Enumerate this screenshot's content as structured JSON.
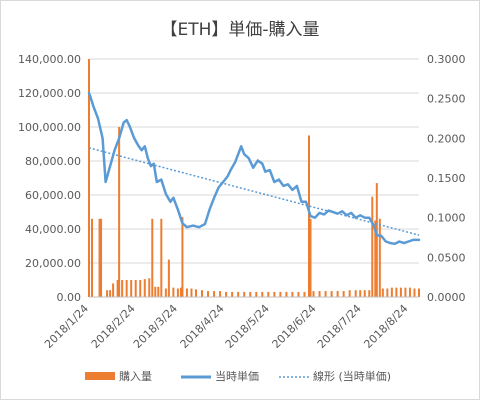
{
  "chart_data": {
    "type": "bar",
    "title": "【ETH】単価-購入量",
    "x_labels": [
      "2018/1/24",
      "2018/2/24",
      "2018/3/24",
      "2018/4/24",
      "2018/5/24",
      "2018/6/24",
      "2018/7/24",
      "2018/8/24"
    ],
    "x_range": [
      "2018/1/24",
      "2018/8/31"
    ],
    "y_left": {
      "range": [
        0,
        140000
      ],
      "ticks": [
        "0.00",
        "20,000.00",
        "40,000.00",
        "60,000.00",
        "80,000.00",
        "100,000.00",
        "120,000.00",
        "140,000.00"
      ]
    },
    "y_right": {
      "range": [
        0,
        0.3
      ],
      "ticks": [
        "0.0000",
        "0.0500",
        "0.1000",
        "0.1500",
        "0.2000",
        "0.2500",
        "0.3000"
      ]
    },
    "grid": true,
    "legend_position": "bottom",
    "series": [
      {
        "name": "購入量",
        "type": "bar",
        "axis": "left",
        "color": "#ed7d31",
        "points": [
          [
            "2018/1/24",
            140000
          ],
          [
            "2018/1/26",
            46000
          ],
          [
            "2018/1/31",
            46000
          ],
          [
            "2018/2/1",
            46000
          ],
          [
            "2018/2/5",
            4000
          ],
          [
            "2018/2/7",
            4000
          ],
          [
            "2018/2/9",
            8000
          ],
          [
            "2018/2/12",
            10000
          ],
          [
            "2018/2/13",
            100000
          ],
          [
            "2018/2/15",
            10000
          ],
          [
            "2018/2/18",
            10000
          ],
          [
            "2018/2/21",
            10000
          ],
          [
            "2018/2/24",
            10000
          ],
          [
            "2018/2/27",
            10000
          ],
          [
            "2018/3/2",
            10500
          ],
          [
            "2018/3/5",
            11000
          ],
          [
            "2018/3/7",
            46000
          ],
          [
            "2018/3/9",
            6000
          ],
          [
            "2018/3/11",
            6000
          ],
          [
            "2018/3/13",
            46000
          ],
          [
            "2018/3/16",
            5000
          ],
          [
            "2018/3/18",
            22000
          ],
          [
            "2018/3/21",
            5500
          ],
          [
            "2018/3/24",
            5000
          ],
          [
            "2018/3/26",
            5500
          ],
          [
            "2018/3/27",
            47000
          ],
          [
            "2018/3/30",
            5000
          ],
          [
            "2018/4/2",
            5000
          ],
          [
            "2018/4/5",
            4500
          ],
          [
            "2018/4/9",
            4000
          ],
          [
            "2018/4/13",
            3500
          ],
          [
            "2018/4/17",
            3500
          ],
          [
            "2018/4/21",
            3500
          ],
          [
            "2018/4/25",
            3000
          ],
          [
            "2018/4/29",
            3000
          ],
          [
            "2018/5/3",
            3000
          ],
          [
            "2018/5/7",
            3000
          ],
          [
            "2018/5/11",
            3000
          ],
          [
            "2018/5/15",
            3000
          ],
          [
            "2018/5/19",
            3000
          ],
          [
            "2018/5/23",
            3000
          ],
          [
            "2018/5/27",
            3000
          ],
          [
            "2018/5/31",
            3000
          ],
          [
            "2018/6/4",
            3000
          ],
          [
            "2018/6/8",
            3000
          ],
          [
            "2018/6/12",
            3000
          ],
          [
            "2018/6/16",
            3000
          ],
          [
            "2018/6/19",
            95000
          ],
          [
            "2018/6/20",
            46000
          ],
          [
            "2018/6/22",
            3500
          ],
          [
            "2018/6/26",
            3500
          ],
          [
            "2018/6/30",
            3500
          ],
          [
            "2018/7/4",
            3500
          ],
          [
            "2018/7/8",
            3500
          ],
          [
            "2018/7/12",
            3500
          ],
          [
            "2018/7/16",
            4000
          ],
          [
            "2018/7/20",
            4000
          ],
          [
            "2018/7/23",
            4000
          ],
          [
            "2018/7/26",
            4000
          ],
          [
            "2018/7/29",
            4000
          ],
          [
            "2018/7/31",
            59000
          ],
          [
            "2018/8/2",
            45000
          ],
          [
            "2018/8/3",
            67000
          ],
          [
            "2018/8/5",
            46000
          ],
          [
            "2018/8/7",
            5000
          ],
          [
            "2018/8/10",
            5000
          ],
          [
            "2018/8/13",
            5500
          ],
          [
            "2018/8/16",
            5500
          ],
          [
            "2018/8/19",
            5500
          ],
          [
            "2018/8/22",
            5500
          ],
          [
            "2018/8/25",
            5500
          ],
          [
            "2018/8/28",
            5000
          ],
          [
            "2018/8/31",
            5000
          ]
        ]
      },
      {
        "name": "当時単価",
        "type": "line",
        "axis": "right",
        "color": "#5b9bd5",
        "points": [
          [
            "2018/1/24",
            0.257
          ],
          [
            "2018/1/25",
            0.252
          ],
          [
            "2018/1/27",
            0.24
          ],
          [
            "2018/1/30",
            0.225
          ],
          [
            "2018/2/2",
            0.2
          ],
          [
            "2018/2/4",
            0.145
          ],
          [
            "2018/2/7",
            0.165
          ],
          [
            "2018/2/10",
            0.185
          ],
          [
            "2018/2/13",
            0.2
          ],
          [
            "2018/2/16",
            0.22
          ],
          [
            "2018/2/18",
            0.223
          ],
          [
            "2018/2/20",
            0.215
          ],
          [
            "2018/2/23",
            0.2
          ],
          [
            "2018/2/26",
            0.19
          ],
          [
            "2018/2/28",
            0.185
          ],
          [
            "2018/3/2",
            0.19
          ],
          [
            "2018/3/4",
            0.175
          ],
          [
            "2018/3/6",
            0.165
          ],
          [
            "2018/3/8",
            0.168
          ],
          [
            "2018/3/10",
            0.145
          ],
          [
            "2018/3/13",
            0.148
          ],
          [
            "2018/3/16",
            0.13
          ],
          [
            "2018/3/19",
            0.12
          ],
          [
            "2018/3/21",
            0.125
          ],
          [
            "2018/3/24",
            0.11
          ],
          [
            "2018/3/27",
            0.093
          ],
          [
            "2018/3/30",
            0.088
          ],
          [
            "2018/4/3",
            0.09
          ],
          [
            "2018/4/7",
            0.088
          ],
          [
            "2018/4/11",
            0.092
          ],
          [
            "2018/4/14",
            0.11
          ],
          [
            "2018/4/17",
            0.125
          ],
          [
            "2018/4/20",
            0.138
          ],
          [
            "2018/4/23",
            0.145
          ],
          [
            "2018/4/26",
            0.152
          ],
          [
            "2018/4/28",
            0.16
          ],
          [
            "2018/5/1",
            0.17
          ],
          [
            "2018/5/3",
            0.18
          ],
          [
            "2018/5/5",
            0.19
          ],
          [
            "2018/5/7",
            0.18
          ],
          [
            "2018/5/10",
            0.175
          ],
          [
            "2018/5/13",
            0.163
          ],
          [
            "2018/5/16",
            0.172
          ],
          [
            "2018/5/19",
            0.168
          ],
          [
            "2018/5/21",
            0.158
          ],
          [
            "2018/5/24",
            0.16
          ],
          [
            "2018/5/27",
            0.145
          ],
          [
            "2018/5/30",
            0.148
          ],
          [
            "2018/6/2",
            0.14
          ],
          [
            "2018/6/5",
            0.142
          ],
          [
            "2018/6/8",
            0.135
          ],
          [
            "2018/6/11",
            0.14
          ],
          [
            "2018/6/14",
            0.12
          ],
          [
            "2018/6/17",
            0.12
          ],
          [
            "2018/6/20",
            0.102
          ],
          [
            "2018/6/23",
            0.1
          ],
          [
            "2018/6/26",
            0.106
          ],
          [
            "2018/6/29",
            0.104
          ],
          [
            "2018/7/2",
            0.109
          ],
          [
            "2018/7/5",
            0.107
          ],
          [
            "2018/7/8",
            0.105
          ],
          [
            "2018/7/11",
            0.108
          ],
          [
            "2018/7/14",
            0.103
          ],
          [
            "2018/7/17",
            0.106
          ],
          [
            "2018/7/20",
            0.1
          ],
          [
            "2018/7/23",
            0.103
          ],
          [
            "2018/7/26",
            0.1
          ],
          [
            "2018/7/29",
            0.1
          ],
          [
            "2018/8/1",
            0.09
          ],
          [
            "2018/8/3",
            0.078
          ],
          [
            "2018/8/6",
            0.077
          ],
          [
            "2018/8/9",
            0.07
          ],
          [
            "2018/8/12",
            0.068
          ],
          [
            "2018/8/15",
            0.067
          ],
          [
            "2018/8/18",
            0.07
          ],
          [
            "2018/8/21",
            0.068
          ],
          [
            "2018/8/24",
            0.07
          ],
          [
            "2018/8/27",
            0.072
          ],
          [
            "2018/8/31",
            0.072
          ]
        ]
      },
      {
        "name": "線形 (当時単価)",
        "type": "trendline",
        "axis": "right",
        "color": "#5b9bd5",
        "points": [
          [
            "2018/1/24",
            0.188
          ],
          [
            "2018/8/31",
            0.078
          ]
        ]
      }
    ]
  }
}
